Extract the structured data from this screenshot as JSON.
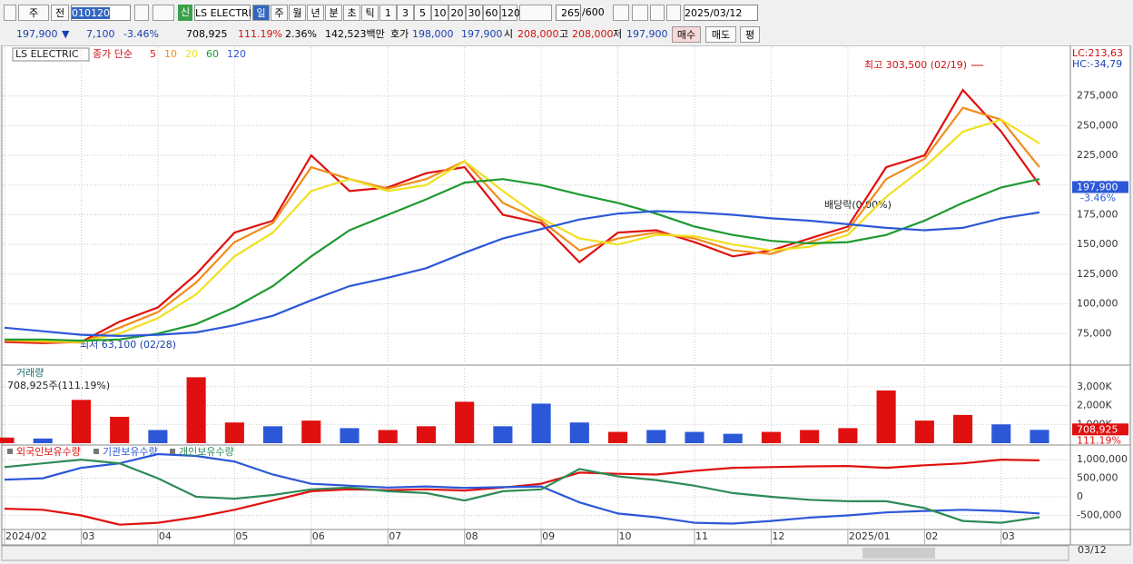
{
  "toolbar": {
    "interval": "주",
    "mode": "전",
    "code": "010120",
    "badge": "신",
    "name": "LS ELECTRI",
    "periods": [
      "일",
      "주",
      "월",
      "년",
      "분",
      "초",
      "틱"
    ],
    "units": [
      "1",
      "3",
      "5",
      "10",
      "20",
      "30",
      "60",
      "120"
    ],
    "count": "265",
    "max": "/600",
    "date": "2025/03/12"
  },
  "quote": {
    "price": "197,900",
    "arrow": "▼",
    "change": "7,100",
    "change_pct": "-3.46%",
    "volume": "708,925",
    "volume_ratio": "111.19%",
    "turnover": "2.36%",
    "amount": "142,523백만",
    "ask_label": "호가",
    "ask": "198,000",
    "bid": "197,900",
    "open_label": "시",
    "open": "208,000",
    "high_label": "고",
    "high": "208,000",
    "low_label": "저",
    "low": "197,900",
    "buy": "매수",
    "sell": "매도",
    "avg": "평"
  },
  "chart_data": [
    {
      "type": "line",
      "title": "LS ELECTRIC",
      "ma_label": "종가 단순",
      "categories": [
        "2024/02",
        null,
        "03",
        null,
        "04",
        null,
        "05",
        null,
        "06",
        null,
        "07",
        null,
        "08",
        null,
        "09",
        null,
        "10",
        null,
        "11",
        null,
        "12",
        null,
        "2025/01",
        null,
        "02",
        null,
        "03",
        null
      ],
      "x_end_label": "03/12",
      "series": [
        {
          "name": "5",
          "color": "#e01010",
          "values": [
            68000,
            67000,
            68000,
            85000,
            97000,
            125000,
            160000,
            170000,
            225000,
            195000,
            198000,
            210000,
            215000,
            175000,
            168000,
            135000,
            160000,
            162000,
            152000,
            140000,
            145000,
            155000,
            165000,
            215000,
            225000,
            280000,
            245000,
            200000
          ]
        },
        {
          "name": "10",
          "color": "#f08c1c",
          "values": [
            69000,
            68000,
            67500,
            80000,
            93000,
            118000,
            152000,
            168000,
            215000,
            205000,
            197000,
            205000,
            220000,
            185000,
            170000,
            145000,
            155000,
            160000,
            155000,
            145000,
            142000,
            152000,
            162000,
            205000,
            222000,
            265000,
            255000,
            215000
          ]
        },
        {
          "name": "20",
          "color": "#f0e020",
          "values": [
            70000,
            69000,
            68000,
            75000,
            88000,
            108000,
            140000,
            160000,
            195000,
            205000,
            195000,
            200000,
            220000,
            195000,
            172000,
            155000,
            150000,
            158000,
            157000,
            150000,
            145000,
            148000,
            158000,
            190000,
            215000,
            245000,
            255000,
            235000
          ]
        },
        {
          "name": "60",
          "color": "#1e9a30",
          "values": [
            70000,
            70000,
            69000,
            70000,
            75000,
            83000,
            97000,
            115000,
            140000,
            162000,
            175000,
            188000,
            202000,
            205000,
            200000,
            192000,
            185000,
            176000,
            165000,
            158000,
            153000,
            151000,
            152000,
            158000,
            170000,
            185000,
            198000,
            205000
          ]
        },
        {
          "name": "120",
          "color": "#2c58d8",
          "values": [
            80000,
            77000,
            74000,
            73000,
            74000,
            76000,
            82000,
            90000,
            103000,
            115000,
            122000,
            130000,
            143000,
            155000,
            163000,
            171000,
            176000,
            178000,
            177000,
            175000,
            172000,
            170000,
            167000,
            164000,
            162000,
            164000,
            172000,
            177000
          ]
        }
      ],
      "ylim": [
        50000,
        316000
      ],
      "yticks": [
        {
          "value": 75000,
          "label": "75,000"
        },
        {
          "value": 100000,
          "label": "100,000"
        },
        {
          "value": 125000,
          "label": "125,000"
        },
        {
          "value": 150000,
          "label": "150,000"
        },
        {
          "value": 175000,
          "label": "175,000"
        },
        {
          "value": 200000,
          "label": "200,000"
        },
        {
          "value": 225000,
          "label": "225,000"
        },
        {
          "value": 250000,
          "label": "250,000"
        },
        {
          "value": 275000,
          "label": "275,000"
        }
      ],
      "grid": true,
      "annotations": {
        "high": "최고 303,500 (02/19)",
        "low": "최저 63,100 (02/28)",
        "ex_dividend": "배당락(0.00%)",
        "lc": "LC:213,63",
        "hc": "HC:-34,79"
      },
      "last_price": {
        "value": 197900,
        "label": "197,900"
      },
      "last_change": "-3.46%"
    },
    {
      "type": "bar",
      "title": "거래량",
      "subtitle": "708,925주(111.19%)",
      "values": [
        300000,
        250000,
        2300000,
        1400000,
        700000,
        3500000,
        1100000,
        900000,
        1200000,
        800000,
        700000,
        900000,
        2200000,
        900000,
        2100000,
        1100000,
        600000,
        700000,
        600000,
        500000,
        600000,
        700000,
        800000,
        2800000,
        1200000,
        1500000,
        1000000,
        708925
      ],
      "colors": [
        "#e01010",
        "#2c58d8",
        "#e01010",
        "#e01010",
        "#2c58d8",
        "#e01010",
        "#e01010",
        "#2c58d8",
        "#e01010",
        "#2c58d8",
        "#e01010",
        "#e01010",
        "#e01010",
        "#2c58d8",
        "#2c58d8",
        "#2c58d8",
        "#e01010",
        "#2c58d8",
        "#2c58d8",
        "#2c58d8",
        "#e01010",
        "#e01010",
        "#e01010",
        "#e01010",
        "#e01010",
        "#e01010",
        "#2c58d8",
        "#2c58d8"
      ],
      "ylim": [
        0,
        4000000
      ],
      "yticks": [
        {
          "value": 1000000,
          "label": "1,000K"
        },
        {
          "value": 2000000,
          "label": "2,000K"
        },
        {
          "value": 3000000,
          "label": "3,000K"
        }
      ],
      "grid": true,
      "last_volume": {
        "value": 708925,
        "label": "708,925"
      },
      "last_ratio": "111.19%"
    },
    {
      "type": "line",
      "series": [
        {
          "name": "외국인보유수량",
          "color": "#e01010",
          "values": [
            -320000,
            -350000,
            -500000,
            -750000,
            -700000,
            -550000,
            -350000,
            -100000,
            150000,
            200000,
            180000,
            200000,
            170000,
            250000,
            350000,
            650000,
            620000,
            600000,
            700000,
            780000,
            800000,
            820000,
            830000,
            780000,
            850000,
            900000,
            1000000,
            980000
          ]
        },
        {
          "name": "기관보유수량",
          "color": "#2c58d8",
          "values": [
            460000,
            500000,
            780000,
            900000,
            1150000,
            1100000,
            950000,
            600000,
            350000,
            300000,
            250000,
            280000,
            240000,
            260000,
            280000,
            -150000,
            -450000,
            -550000,
            -700000,
            -720000,
            -650000,
            -560000,
            -500000,
            -420000,
            -380000,
            -350000,
            -380000,
            -450000
          ]
        },
        {
          "name": "개인보유수량",
          "color": "#2e8b57",
          "values": [
            800000,
            900000,
            1000000,
            900000,
            500000,
            0,
            -50000,
            50000,
            200000,
            250000,
            150000,
            100000,
            -100000,
            150000,
            200000,
            750000,
            550000,
            450000,
            300000,
            100000,
            0,
            -80000,
            -120000,
            -120000,
            -300000,
            -650000,
            -700000,
            -550000
          ]
        }
      ],
      "ylim": [
        -880000,
        1370000
      ],
      "yticks": [
        {
          "value": -500000,
          "label": "-500,000"
        },
        0,
        {
          "value": 500000,
          "label": "500,000"
        },
        {
          "value": 1000000,
          "label": "1,000,000"
        }
      ],
      "grid": true
    }
  ]
}
